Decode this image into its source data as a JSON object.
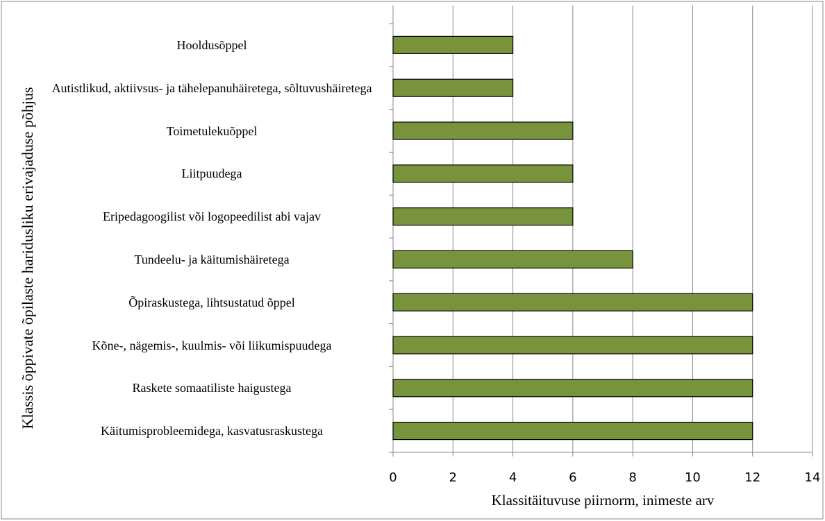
{
  "chart_data": {
    "type": "bar",
    "orientation": "horizontal",
    "xlabel": "Klassitäituvuse piirnorm, inimeste arv",
    "ylabel": "Klassis õppivate õpilaste haridusliku erivajaduse põhjus",
    "categories": [
      "Hooldusõppel",
      "Autistlikud, aktiivsus- ja tähelepanuhäiretega, sõltuvushäiretega",
      "Toimetulekuõppel",
      "Liitpuudega",
      "Eripedagoogilist või logopeedilist abi vajav",
      "Tundeelu- ja käitumishäiretega",
      "Õpiraskustega, lihtsustatud õppel",
      "Kõne-, nägemis-, kuulmis- või liikumispuudega",
      "Raskete somaatiliste haigustega",
      "Käitumisprobleemidega, kasvatusraskustega"
    ],
    "values": [
      4,
      4,
      6,
      6,
      6,
      8,
      12,
      12,
      12,
      12
    ],
    "color": "#77933c",
    "xlim": [
      0,
      14
    ],
    "xticks": [
      0,
      2,
      4,
      6,
      8,
      10,
      12,
      14
    ],
    "grid": true
  }
}
